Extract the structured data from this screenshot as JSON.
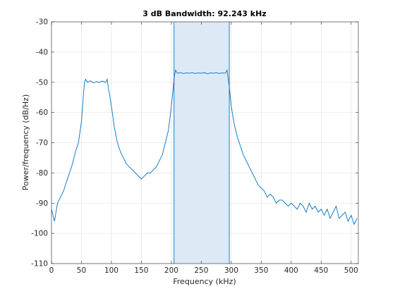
{
  "chart_data": {
    "type": "line",
    "title": "3 dB Bandwidth: 92.243 kHz",
    "xlabel": "Frequency (kHz)",
    "ylabel": "Power/frequency (dB/Hz)",
    "xlim": [
      0,
      512
    ],
    "ylim": [
      -110,
      -30
    ],
    "xticks": [
      0,
      50,
      100,
      150,
      200,
      250,
      300,
      350,
      400,
      450,
      500
    ],
    "yticks": [
      -110,
      -100,
      -90,
      -80,
      -70,
      -60,
      -50,
      -40,
      -30
    ],
    "grid": true,
    "line_color": "#0072bd",
    "band_fill_color": "#ddeaf5",
    "band": {
      "x_start": 204.5,
      "x_end": 296.7
    },
    "series": [
      {
        "x": [
          0,
          5,
          10,
          15,
          20,
          25,
          30,
          35,
          40,
          45,
          50,
          53,
          55,
          57,
          60,
          65,
          70,
          75,
          80,
          85,
          90,
          93,
          95,
          97,
          100,
          105,
          110,
          115,
          120,
          125,
          130,
          135,
          140,
          145,
          150,
          155,
          160,
          165,
          170,
          175,
          180,
          185,
          190,
          195,
          200,
          203,
          205,
          207,
          210,
          215,
          220,
          225,
          230,
          235,
          240,
          245,
          250,
          255,
          260,
          265,
          270,
          275,
          280,
          285,
          290,
          293,
          295,
          297,
          300,
          305,
          310,
          315,
          320,
          325,
          330,
          335,
          340,
          345,
          350,
          355,
          360,
          365,
          370,
          375,
          380,
          385,
          390,
          395,
          400,
          405,
          410,
          415,
          420,
          425,
          430,
          435,
          440,
          445,
          450,
          455,
          460,
          465,
          470,
          475,
          480,
          485,
          490,
          495,
          500,
          505,
          510
        ],
        "y": [
          -92,
          -96,
          -90,
          -88,
          -86,
          -83,
          -80,
          -77,
          -73,
          -70,
          -63,
          -55,
          -50,
          -49,
          -50,
          -49.5,
          -50.2,
          -49.8,
          -50,
          -49.6,
          -50.1,
          -49,
          -52,
          -54,
          -58,
          -65,
          -70,
          -73,
          -75,
          -77,
          -78,
          -79,
          -80,
          -81,
          -82,
          -81,
          -80,
          -80,
          -79,
          -78,
          -76,
          -74,
          -70,
          -66,
          -58,
          -52,
          -48,
          -46,
          -47,
          -46.8,
          -47.1,
          -46.9,
          -47,
          -46.8,
          -47.1,
          -46.9,
          -47,
          -46.8,
          -47.2,
          -46.9,
          -47,
          -46.8,
          -47.1,
          -46.9,
          -47,
          -46,
          -49,
          -52,
          -58,
          -64,
          -68,
          -71,
          -74,
          -76,
          -78,
          -80,
          -82,
          -84,
          -85,
          -86,
          -88,
          -87,
          -88,
          -90,
          -89,
          -89,
          -90,
          -91,
          -90,
          -91,
          -92,
          -90,
          -91,
          -93,
          -90,
          -92,
          -91,
          -93,
          -92,
          -94,
          -92,
          -95,
          -93,
          -91,
          -95,
          -94,
          -93,
          -96,
          -94,
          -97,
          -95
        ]
      }
    ]
  }
}
